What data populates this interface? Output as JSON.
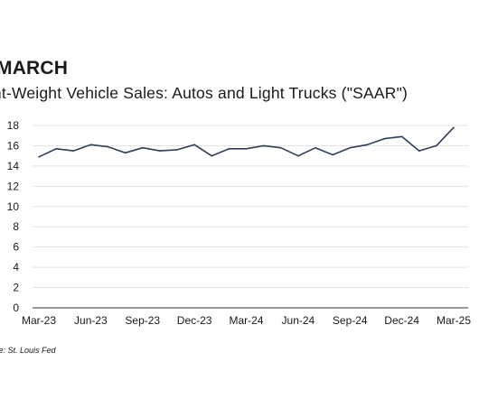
{
  "chart_data": {
    "type": "line",
    "title": "MARCH",
    "subtitle": "ght-Weight Vehicle Sales: Autos and Light Trucks (\"SAAR\")",
    "source": "urce: St. Louis Fed",
    "xlabel": "",
    "ylabel": "",
    "ylim": [
      0,
      18
    ],
    "yticks": [
      0,
      2,
      4,
      6,
      8,
      10,
      12,
      14,
      16,
      18
    ],
    "xtick_labels": [
      "Mar-23",
      "Jun-23",
      "Sep-23",
      "Dec-23",
      "Mar-24",
      "Jun-24",
      "Sep-24",
      "Dec-24",
      "Mar-25"
    ],
    "grid": true,
    "legend": "none",
    "colors": {
      "line": "#2e3f55",
      "grid": "#e3e3e3",
      "axis": "#333333"
    },
    "x": [
      "Mar-23",
      "Apr-23",
      "May-23",
      "Jun-23",
      "Jul-23",
      "Aug-23",
      "Sep-23",
      "Oct-23",
      "Nov-23",
      "Dec-23",
      "Jan-24",
      "Feb-24",
      "Mar-24",
      "Apr-24",
      "May-24",
      "Jun-24",
      "Jul-24",
      "Aug-24",
      "Sep-24",
      "Oct-24",
      "Nov-24",
      "Dec-24",
      "Jan-25",
      "Feb-25",
      "Mar-25"
    ],
    "values": [
      14.9,
      15.7,
      15.5,
      16.1,
      15.9,
      15.3,
      15.8,
      15.5,
      15.6,
      16.1,
      15.0,
      15.7,
      15.7,
      16.0,
      15.8,
      15.0,
      15.8,
      15.1,
      15.8,
      16.1,
      16.7,
      16.9,
      15.5,
      16.0,
      17.8
    ]
  }
}
